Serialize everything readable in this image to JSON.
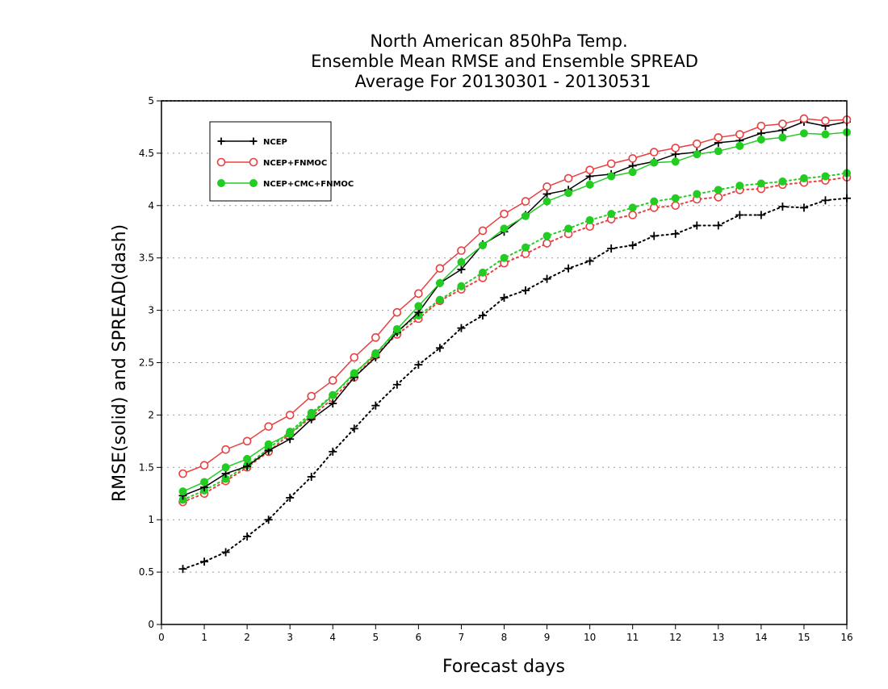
{
  "chart_data": {
    "type": "line",
    "title_lines": [
      "North American 850hPa Temp.",
      "Ensemble Mean RMSE and Ensemble SPREAD",
      "Average For 20130301 - 20130531"
    ],
    "xlabel": "Forecast days",
    "ylabel": "RMSE(solid) and SPREAD(dash)",
    "xlim": [
      0,
      16
    ],
    "ylim": [
      0,
      5
    ],
    "xticks": [
      0,
      1,
      2,
      3,
      4,
      5,
      6,
      7,
      8,
      9,
      10,
      11,
      12,
      13,
      14,
      15,
      16
    ],
    "yticks": [
      0,
      0.5,
      1,
      1.5,
      2,
      2.5,
      3,
      3.5,
      4,
      4.5,
      5
    ],
    "grid": "horizontal dotted",
    "legend_placement": "top-left",
    "x": [
      0.5,
      1,
      1.5,
      2,
      2.5,
      3,
      3.5,
      4,
      4.5,
      5,
      5.5,
      6,
      6.5,
      7,
      7.5,
      8,
      8.5,
      9,
      9.5,
      10,
      10.5,
      11,
      11.5,
      12,
      12.5,
      13,
      13.5,
      14,
      14.5,
      15,
      15.5,
      16
    ],
    "series": [
      {
        "name": "NCEP",
        "color": "#000000",
        "marker": "plus",
        "rmse": [
          1.23,
          1.31,
          1.44,
          1.51,
          1.66,
          1.77,
          1.96,
          2.11,
          2.36,
          2.55,
          2.79,
          2.98,
          3.26,
          3.39,
          3.63,
          3.75,
          3.91,
          4.11,
          4.15,
          4.28,
          4.3,
          4.38,
          4.42,
          4.49,
          4.51,
          4.6,
          4.62,
          4.69,
          4.72,
          4.8,
          4.76,
          4.8
        ],
        "spread": [
          0.53,
          0.6,
          0.69,
          0.84,
          1.0,
          1.21,
          1.41,
          1.65,
          1.87,
          2.09,
          2.29,
          2.48,
          2.64,
          2.83,
          2.95,
          3.12,
          3.19,
          3.3,
          3.4,
          3.47,
          3.59,
          3.62,
          3.71,
          3.73,
          3.81,
          3.81,
          3.91,
          3.91,
          3.99,
          3.98,
          4.05,
          4.07
        ]
      },
      {
        "name": "NCEP+FNMOC",
        "color": "#e84040",
        "marker": "open-circle",
        "rmse": [
          1.44,
          1.52,
          1.67,
          1.75,
          1.89,
          2.0,
          2.18,
          2.33,
          2.55,
          2.74,
          2.98,
          3.16,
          3.4,
          3.57,
          3.76,
          3.92,
          4.04,
          4.18,
          4.26,
          4.34,
          4.4,
          4.45,
          4.51,
          4.55,
          4.59,
          4.65,
          4.68,
          4.76,
          4.78,
          4.83,
          4.81,
          4.82
        ],
        "spread": [
          1.17,
          1.25,
          1.37,
          1.5,
          1.65,
          1.82,
          1.98,
          2.16,
          2.36,
          2.57,
          2.77,
          2.92,
          3.09,
          3.2,
          3.31,
          3.45,
          3.54,
          3.64,
          3.73,
          3.8,
          3.87,
          3.91,
          3.98,
          4.0,
          4.06,
          4.08,
          4.15,
          4.16,
          4.2,
          4.22,
          4.24,
          4.27
        ]
      },
      {
        "name": "NCEP+CMC+FNMOC",
        "color": "#22cc22",
        "marker": "filled-circle",
        "rmse": [
          1.27,
          1.36,
          1.5,
          1.58,
          1.72,
          1.82,
          2.0,
          2.19,
          2.4,
          2.58,
          2.82,
          3.04,
          3.26,
          3.46,
          3.62,
          3.78,
          3.9,
          4.04,
          4.12,
          4.2,
          4.28,
          4.32,
          4.41,
          4.42,
          4.49,
          4.52,
          4.57,
          4.63,
          4.65,
          4.69,
          4.68,
          4.7
        ],
        "spread": [
          1.19,
          1.28,
          1.39,
          1.52,
          1.68,
          1.84,
          2.02,
          2.19,
          2.39,
          2.59,
          2.8,
          2.95,
          3.1,
          3.23,
          3.36,
          3.5,
          3.6,
          3.71,
          3.78,
          3.86,
          3.92,
          3.98,
          4.04,
          4.07,
          4.11,
          4.15,
          4.19,
          4.21,
          4.23,
          4.26,
          4.28,
          4.31
        ]
      }
    ]
  }
}
